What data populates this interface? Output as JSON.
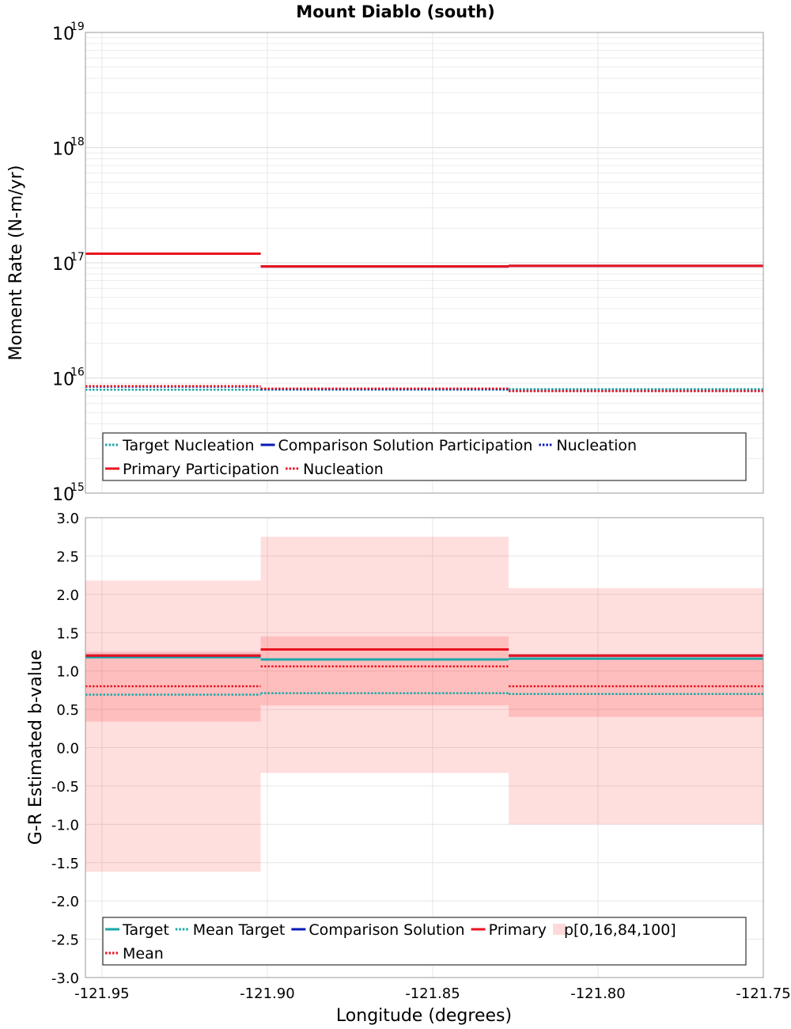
{
  "figure": {
    "title": "Mount Diablo (south)",
    "xlabel": "Longitude (degrees)",
    "xlim": [
      -121.955,
      -121.75
    ],
    "xticks": [
      "-121.95",
      "-121.90",
      "-121.85",
      "-121.80",
      "-121.75"
    ],
    "xtick_values": [
      -121.95,
      -121.9,
      -121.85,
      -121.8,
      -121.75
    ]
  },
  "chart_data": [
    {
      "type": "line",
      "subtype": "step",
      "ylabel": "Moment Rate (N-m/yr)",
      "yscale": "log",
      "ylim": [
        1000000000000000.0,
        1e+19
      ],
      "yticks_base": "10",
      "yticks_exponents": [
        "15",
        "16",
        "17",
        "18",
        "19"
      ],
      "grid": true,
      "legend_position": "bottom",
      "segments": [
        [
          -121.955,
          -121.902
        ],
        [
          -121.902,
          -121.827
        ],
        [
          -121.827,
          -121.75
        ]
      ],
      "series": [
        {
          "name": "Target Nucleation",
          "style": "dotted",
          "color": "#1aa7a7",
          "values": [
            7900000000000000.0,
            7900000000000000.0,
            8000000000000000.0
          ]
        },
        {
          "name": "Comparison Solution Participation",
          "style": "solid",
          "color": "#0a1ab8",
          "values": [
            1.2e+17,
            9.3e+16,
            9.4e+16
          ]
        },
        {
          "name": "Nucleation",
          "style": "dotted",
          "color": "#0a1ab8",
          "values": [
            8400000000000000.0,
            8000000000000000.0,
            7700000000000000.0
          ]
        },
        {
          "name": "Primary Participation",
          "style": "solid",
          "color": "#e8141e",
          "values": [
            1.2e+17,
            9.3e+16,
            9.4e+16
          ]
        },
        {
          "name": "Nucleation",
          "style": "dotted",
          "color": "#e8141e",
          "values": [
            8500000000000000.0,
            8100000000000000.0,
            7700000000000000.0
          ]
        }
      ]
    },
    {
      "type": "line",
      "subtype": "step",
      "ylabel": "G-R Estimated b-value",
      "ylim": [
        -3.0,
        3.0
      ],
      "yticks": [
        "3.0",
        "2.5",
        "2.0",
        "1.5",
        "1.0",
        "0.5",
        "0.0",
        "-0.5",
        "-1.0",
        "-1.5",
        "-2.0",
        "-2.5",
        "-3.0"
      ],
      "ytick_values": [
        3.0,
        2.5,
        2.0,
        1.5,
        1.0,
        0.5,
        0.0,
        -0.5,
        -1.0,
        -1.5,
        -2.0,
        -2.5,
        -3.0
      ],
      "grid": true,
      "legend_position": "bottom",
      "segments": [
        [
          -121.955,
          -121.902
        ],
        [
          -121.902,
          -121.827
        ],
        [
          -121.827,
          -121.75
        ]
      ],
      "bands": {
        "name": "p[0,16,84,100]",
        "color": "#ff0000",
        "outer": [
          [
            -1.62,
            2.18
          ],
          [
            -0.33,
            2.75
          ],
          [
            -1.0,
            2.08
          ]
        ],
        "inner": [
          [
            0.34,
            1.25
          ],
          [
            0.55,
            1.45
          ],
          [
            0.4,
            1.22
          ]
        ]
      },
      "series": [
        {
          "name": "Target",
          "style": "solid",
          "color": "#1aa7a7",
          "values": [
            1.18,
            1.15,
            1.16
          ]
        },
        {
          "name": "Mean Target",
          "style": "dotted",
          "color": "#1aa7a7",
          "values": [
            0.69,
            0.71,
            0.7
          ]
        },
        {
          "name": "Comparison Solution",
          "style": "solid",
          "color": "#0a1ab8",
          "values": [
            1.2,
            1.28,
            1.2
          ]
        },
        {
          "name": "Primary",
          "style": "solid",
          "color": "#e8141e",
          "values": [
            1.2,
            1.28,
            1.2
          ]
        },
        {
          "name": "Mean",
          "style": "dotted",
          "color": "#e8141e",
          "values": [
            0.8,
            1.06,
            0.8
          ]
        }
      ]
    }
  ]
}
